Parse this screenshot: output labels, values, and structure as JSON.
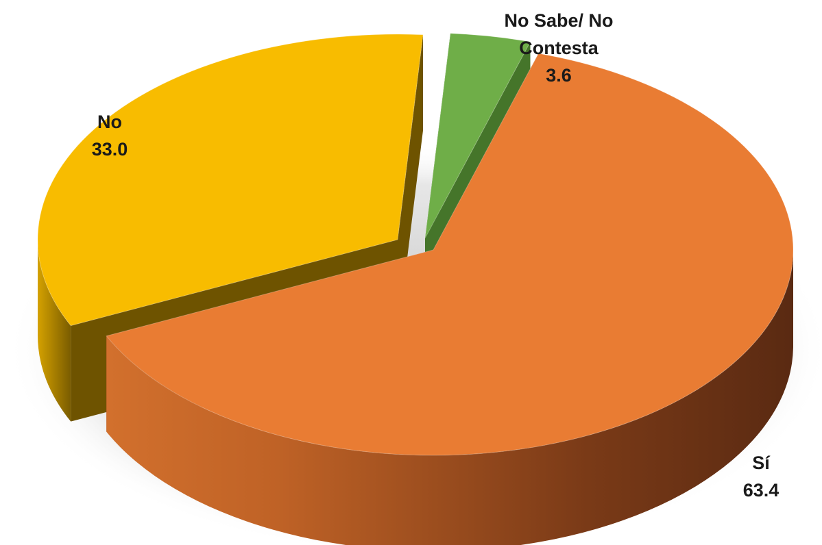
{
  "chart_data": {
    "type": "pie",
    "style": "3d-exploded",
    "title": "",
    "legend": "none",
    "slices": [
      {
        "label": "Sí",
        "value": 63.4,
        "value_label": "63.4",
        "color": "#E97C33"
      },
      {
        "label": "No",
        "value": 33.0,
        "value_label": "33.0",
        "color": "#F8BC00"
      },
      {
        "label": "No Sabe/ No Contesta",
        "label_lines": [
          "No Sabe/ No",
          "Contesta"
        ],
        "value": 3.6,
        "value_label": "3.6",
        "color": "#6FAE48"
      }
    ]
  }
}
